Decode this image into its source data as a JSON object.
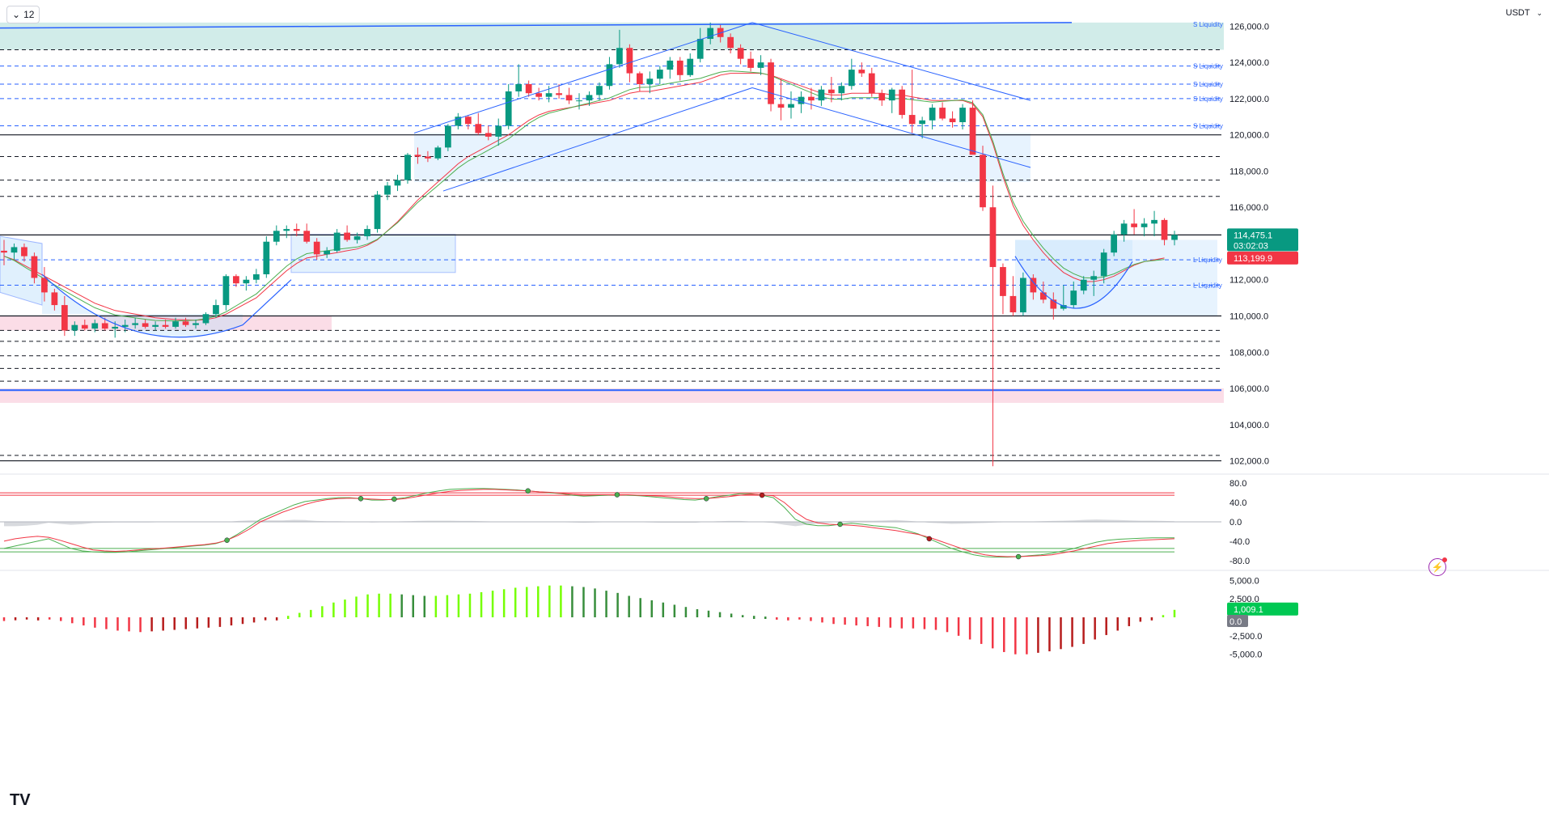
{
  "toolbar": {
    "timeframe": "12",
    "currency": "USDT"
  },
  "colors": {
    "up": "#089981",
    "down": "#f23645",
    "accent": "#2962ff",
    "grid": "#131722",
    "histUp": "#4caf50",
    "histDown": "#f23645"
  },
  "badges": {
    "price": "114,475.1",
    "countdown": "03:02:03",
    "ma": "113,199.9",
    "hist": "1,009.1",
    "zero": "0.0"
  },
  "chart_data": [
    {
      "type": "candlestick",
      "title": "",
      "ylim": [
        101400,
        127000
      ],
      "y_ticks": [
        "126,000.0",
        "124,000.0",
        "122,000.0",
        "120,000.0",
        "118,000.0",
        "116,000.0",
        "112,000.0",
        "110,000.0",
        "108,000.0",
        "106,000.0",
        "104,000.0",
        "102,000.0"
      ],
      "y_tick_values": [
        126000,
        124000,
        122000,
        120000,
        118000,
        116000,
        112000,
        110000,
        108000,
        106000,
        104000,
        102000
      ],
      "candles": [
        [
          113600,
          114200,
          112800,
          113500
        ],
        [
          113500,
          114000,
          113100,
          113800
        ],
        [
          113800,
          114000,
          113000,
          113300
        ],
        [
          113300,
          113500,
          111800,
          112100
        ],
        [
          112100,
          112700,
          110800,
          111300
        ],
        [
          111300,
          111500,
          110300,
          110600
        ],
        [
          110600,
          111100,
          108900,
          109200
        ],
        [
          109200,
          109700,
          108900,
          109500
        ],
        [
          109500,
          109800,
          109200,
          109300
        ],
        [
          109300,
          109800,
          109100,
          109600
        ],
        [
          109600,
          109900,
          109200,
          109300
        ],
        [
          109300,
          109700,
          108800,
          109400
        ],
        [
          109400,
          109800,
          109100,
          109500
        ],
        [
          109500,
          109900,
          109300,
          109600
        ],
        [
          109600,
          109800,
          109300,
          109400
        ],
        [
          109400,
          109700,
          109200,
          109500
        ],
        [
          109500,
          109800,
          109300,
          109400
        ],
        [
          109400,
          109900,
          109300,
          109700
        ],
        [
          109700,
          109900,
          109400,
          109500
        ],
        [
          109500,
          109800,
          109300,
          109600
        ],
        [
          109600,
          110200,
          109500,
          110100
        ],
        [
          110100,
          110900,
          109900,
          110600
        ],
        [
          110600,
          112300,
          110300,
          112200
        ],
        [
          112200,
          112300,
          111600,
          111800
        ],
        [
          111800,
          112200,
          111400,
          112000
        ],
        [
          112000,
          112600,
          111800,
          112300
        ],
        [
          112300,
          114400,
          112100,
          114100
        ],
        [
          114100,
          115000,
          113900,
          114700
        ],
        [
          114700,
          115000,
          114300,
          114800
        ],
        [
          114800,
          115100,
          114400,
          114700
        ],
        [
          114700,
          115100,
          114000,
          114100
        ],
        [
          114100,
          114300,
          113100,
          113400
        ],
        [
          113400,
          113800,
          113200,
          113600
        ],
        [
          113600,
          114800,
          113500,
          114600
        ],
        [
          114600,
          115000,
          114100,
          114200
        ],
        [
          114200,
          114600,
          114000,
          114400
        ],
        [
          114400,
          115000,
          114200,
          114800
        ],
        [
          114800,
          116900,
          114600,
          116700
        ],
        [
          116700,
          117400,
          116400,
          117200
        ],
        [
          117200,
          117800,
          116900,
          117500
        ],
        [
          117500,
          119000,
          117300,
          118900
        ],
        [
          118900,
          119300,
          118400,
          118800
        ],
        [
          118800,
          119100,
          118500,
          118700
        ],
        [
          118700,
          119400,
          118600,
          119300
        ],
        [
          119300,
          120600,
          119100,
          120500
        ],
        [
          120500,
          121200,
          120300,
          121000
        ],
        [
          121000,
          121100,
          120300,
          120600
        ],
        [
          120600,
          121200,
          120000,
          120100
        ],
        [
          120100,
          120500,
          119700,
          119900
        ],
        [
          119900,
          120900,
          119400,
          120500
        ],
        [
          120500,
          122800,
          120300,
          122400
        ],
        [
          122400,
          123900,
          122100,
          122800
        ],
        [
          122800,
          123000,
          122100,
          122300
        ],
        [
          122300,
          122600,
          121900,
          122100
        ],
        [
          122100,
          122700,
          121800,
          122300
        ],
        [
          122300,
          122800,
          122000,
          122200
        ],
        [
          122200,
          122600,
          121700,
          121900
        ],
        [
          121900,
          122300,
          121400,
          121900
        ],
        [
          121900,
          122400,
          121600,
          122200
        ],
        [
          122200,
          122900,
          121900,
          122700
        ],
        [
          122700,
          124300,
          122500,
          123900
        ],
        [
          123900,
          125800,
          123700,
          124800
        ],
        [
          124800,
          125000,
          122900,
          123400
        ],
        [
          123400,
          123500,
          122400,
          122800
        ],
        [
          122800,
          123500,
          122300,
          123100
        ],
        [
          123100,
          123800,
          122800,
          123600
        ],
        [
          123600,
          124300,
          123100,
          124100
        ],
        [
          124100,
          124300,
          123000,
          123300
        ],
        [
          123300,
          124500,
          123200,
          124200
        ],
        [
          124200,
          125900,
          124000,
          125300
        ],
        [
          125300,
          126200,
          125000,
          125900
        ],
        [
          125900,
          126100,
          125100,
          125400
        ],
        [
          125400,
          125600,
          124500,
          124800
        ],
        [
          124800,
          125000,
          123900,
          124200
        ],
        [
          124200,
          124600,
          123500,
          123700
        ],
        [
          123700,
          124400,
          123300,
          124000
        ],
        [
          124000,
          124200,
          121300,
          121700
        ],
        [
          121700,
          123100,
          120800,
          121500
        ],
        [
          121500,
          122400,
          120900,
          121700
        ],
        [
          121700,
          122400,
          121200,
          122100
        ],
        [
          122100,
          122600,
          121400,
          121900
        ],
        [
          121900,
          122700,
          121600,
          122500
        ],
        [
          122500,
          123200,
          121800,
          122300
        ],
        [
          122300,
          122900,
          121900,
          122700
        ],
        [
          122700,
          124200,
          122500,
          123600
        ],
        [
          123600,
          124000,
          123200,
          123400
        ],
        [
          123400,
          123700,
          122100,
          122300
        ],
        [
          122300,
          122500,
          121600,
          121900
        ],
        [
          121900,
          122600,
          121200,
          122500
        ],
        [
          122500,
          122700,
          120900,
          121100
        ],
        [
          121100,
          123600,
          120100,
          120600
        ],
        [
          120600,
          121000,
          119800,
          120800
        ],
        [
          120800,
          121700,
          120300,
          121500
        ],
        [
          121500,
          121800,
          120800,
          120900
        ],
        [
          120900,
          121300,
          120400,
          120700
        ],
        [
          120700,
          121700,
          120300,
          121500
        ],
        [
          121500,
          121900,
          119000,
          118900
        ],
        [
          118900,
          119400,
          115800,
          116000
        ],
        [
          116000,
          117200,
          101700,
          112700
        ],
        [
          112700,
          112900,
          110100,
          111100
        ],
        [
          111100,
          112200,
          110000,
          110200
        ],
        [
          110200,
          112400,
          110000,
          112100
        ],
        [
          112100,
          112300,
          110900,
          111300
        ],
        [
          111300,
          111900,
          110700,
          110900
        ],
        [
          110900,
          111300,
          109800,
          110400
        ],
        [
          110400,
          111700,
          110300,
          110600
        ],
        [
          110600,
          111900,
          110400,
          111400
        ],
        [
          111400,
          112200,
          111200,
          112000
        ],
        [
          112000,
          112500,
          111100,
          112200
        ],
        [
          112200,
          113700,
          111800,
          113500
        ],
        [
          113500,
          114700,
          113300,
          114500
        ],
        [
          114500,
          115300,
          114100,
          115100
        ],
        [
          115100,
          115900,
          114500,
          114900
        ],
        [
          114900,
          115400,
          114400,
          115100
        ],
        [
          115100,
          115800,
          114400,
          115300
        ],
        [
          115300,
          115400,
          113900,
          114200
        ],
        [
          114200,
          114700,
          113900,
          114475.1
        ]
      ],
      "ma": [
        113300,
        113100,
        112800,
        112500,
        112200,
        111900,
        111600,
        111300,
        111000,
        110700,
        110500,
        110300,
        110200,
        110100,
        110000,
        109900,
        109850,
        109800,
        109780,
        109760,
        109800,
        109900,
        110100,
        110400,
        110700,
        111000,
        111500,
        112000,
        112500,
        112900,
        113200,
        113300,
        113400,
        113500,
        113600,
        113700,
        113900,
        114200,
        114700,
        115200,
        115800,
        116400,
        116900,
        117400,
        117900,
        118400,
        118800,
        119100,
        119400,
        119700,
        120000,
        120400,
        120800,
        121100,
        121300,
        121400,
        121500,
        121600,
        121700,
        121800,
        121900,
        122100,
        122300,
        122400,
        122400,
        122500,
        122600,
        122700,
        122800,
        122900,
        123100,
        123300,
        123400,
        123400,
        123400,
        123400,
        123300,
        123100,
        122900,
        122700,
        122500,
        122300,
        122200,
        122200,
        122300,
        122300,
        122300,
        122300,
        122200,
        122200,
        122100,
        122000,
        121900,
        121900,
        121900,
        121900,
        121700,
        121000,
        119500,
        117700,
        116100,
        115000,
        114200,
        113500,
        112900,
        112400,
        112100,
        111900,
        111900,
        112000,
        112200,
        112500,
        112800,
        113000,
        113100,
        113199.9
      ]
    },
    {
      "type": "line",
      "title": "",
      "ylim": [
        -92,
        92
      ],
      "y_ticks": [
        "80.0",
        "40.0",
        "0.0",
        "-40.0",
        "-80.0"
      ],
      "y_tick_values": [
        80,
        40,
        0,
        -40,
        -80
      ],
      "series": [
        {
          "values": [
            -55,
            -50,
            -45,
            -40,
            -35,
            -45,
            -55,
            -60,
            -62,
            -63,
            -63,
            -62,
            -60,
            -58,
            -56,
            -54,
            -52,
            -50,
            -48,
            -45,
            -38,
            -25,
            -10,
            5,
            15,
            25,
            35,
            42,
            45,
            48,
            50,
            50,
            48,
            45,
            45,
            47,
            50,
            55,
            60,
            64,
            67,
            68,
            69,
            69,
            68,
            67,
            66,
            64,
            62,
            60,
            58,
            55,
            53,
            54,
            55,
            56,
            55,
            54,
            52,
            50,
            48,
            46,
            45,
            48,
            52,
            55,
            58,
            58,
            55,
            50,
            30,
            5,
            -5,
            -8,
            -8,
            -5,
            -3,
            -5,
            -8,
            -10,
            -12,
            -18,
            -25,
            -35,
            -45,
            -55,
            -62,
            -68,
            -72,
            -73,
            -73,
            -72,
            -70,
            -68,
            -65,
            -60,
            -55,
            -48,
            -42,
            -38,
            -36,
            -35,
            -34,
            -33,
            -33,
            -33
          ]
        },
        {
          "values": [
            -40,
            -35,
            -32,
            -30,
            -32,
            -38,
            -45,
            -52,
            -58,
            -60,
            -61,
            -60,
            -58,
            -56,
            -55,
            -53,
            -51,
            -49,
            -47,
            -44,
            -38,
            -28,
            -15,
            0,
            10,
            20,
            28,
            36,
            42,
            46,
            48,
            49,
            48,
            47,
            46,
            46,
            48,
            52,
            56,
            60,
            63,
            65,
            66,
            67,
            67,
            66,
            65,
            64,
            62,
            61,
            59,
            57,
            56,
            56,
            56,
            56,
            56,
            55,
            54,
            53,
            51,
            49,
            48,
            48,
            50,
            52,
            55,
            57,
            56,
            54,
            40,
            20,
            5,
            -2,
            -5,
            -6,
            -7,
            -9,
            -12,
            -15,
            -18,
            -22,
            -26,
            -32,
            -40,
            -48,
            -56,
            -63,
            -68,
            -71,
            -72,
            -72,
            -71,
            -70,
            -68,
            -64,
            -60,
            -55,
            -50,
            -45,
            -42,
            -40,
            -38,
            -37,
            -36,
            -35
          ]
        }
      ]
    },
    {
      "type": "bar",
      "title": "",
      "ylim": [
        -5800,
        5800
      ],
      "y_ticks": [
        "5,000.0",
        "2,500.0",
        "0.0",
        "-2,500.0",
        "-5,000.0"
      ],
      "y_tick_values": [
        5000,
        2500,
        0,
        -2500,
        -5000
      ],
      "values": [
        -500,
        -400,
        -300,
        -200,
        -300,
        -500,
        -800,
        -1100,
        -1400,
        -1600,
        -1800,
        -1900,
        -2000,
        -1900,
        -1800,
        -1700,
        -1600,
        -1500,
        -1400,
        -1300,
        -1100,
        -900,
        -700,
        -400,
        -200,
        200,
        600,
        1000,
        1500,
        2000,
        2400,
        2800,
        3100,
        3200,
        3200,
        3100,
        3000,
        2900,
        2900,
        3000,
        3100,
        3200,
        3400,
        3600,
        3800,
        4000,
        4100,
        4200,
        4300,
        4300,
        4200,
        4100,
        3900,
        3600,
        3300,
        2900,
        2600,
        2300,
        2000,
        1700,
        1400,
        1100,
        900,
        700,
        500,
        300,
        200,
        100,
        -100,
        -200,
        -300,
        -500,
        -700,
        -900,
        -1000,
        -1100,
        -1200,
        -1300,
        -1400,
        -1500,
        -1500,
        -1600,
        -1700,
        -2000,
        -2500,
        -3000,
        -3600,
        -4200,
        -4700,
        -5000,
        -5000,
        -4800,
        -4600,
        -4300,
        -4000,
        -3600,
        -3000,
        -2400,
        -1800,
        -1200,
        -600,
        -200,
        300,
        1009.1
      ]
    }
  ]
}
